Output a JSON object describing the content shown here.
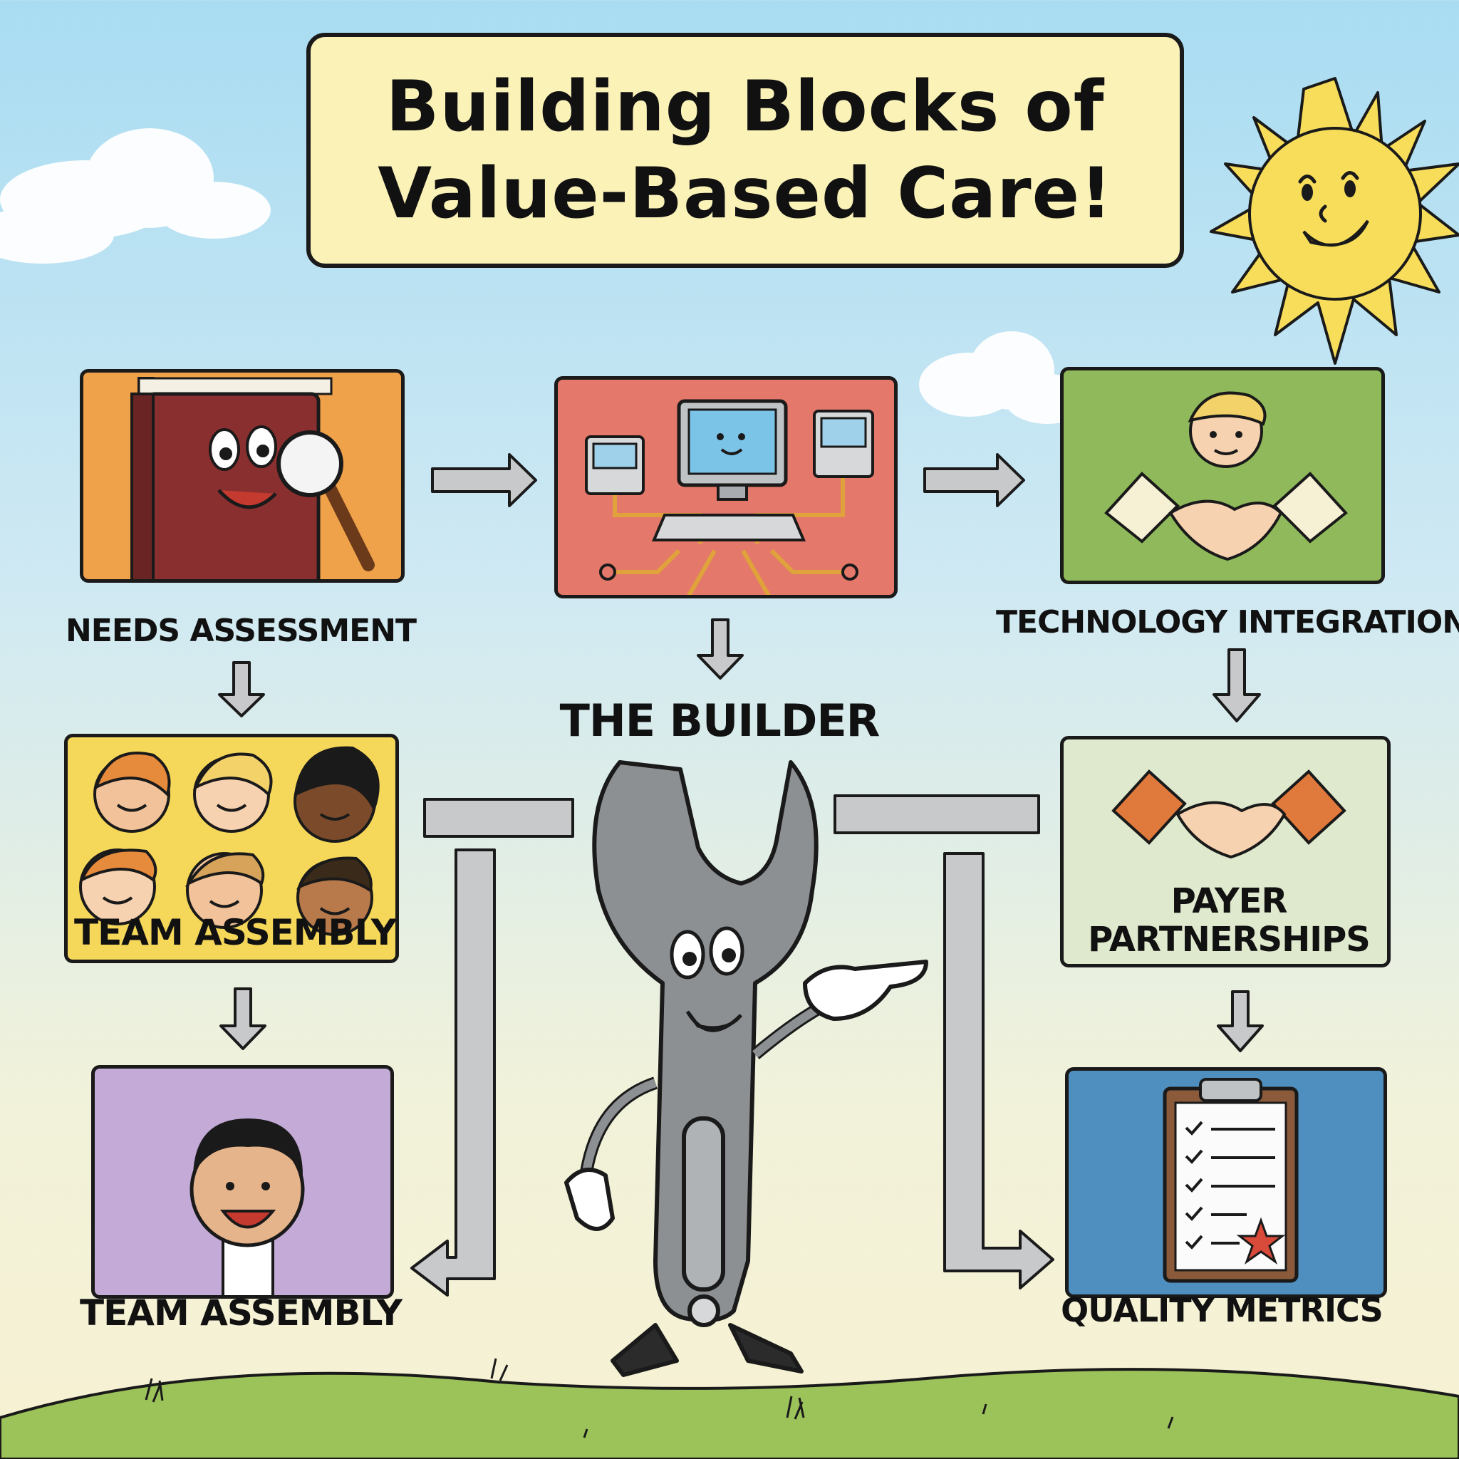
{
  "title": {
    "line1": "Building Blocks of",
    "line2": "Value-Based Care!"
  },
  "center": {
    "label": "The Builder"
  },
  "blocks": [
    {
      "label": "Needs Assessment",
      "color": "#f0a24a"
    },
    {
      "label": "Technology Integration",
      "color": "#e4786a"
    },
    {
      "label": "Team Assembly",
      "color": "#f5d75a"
    },
    {
      "label": "Payer Partnerships",
      "color": "#dfe9cd"
    },
    {
      "label": "Team Assembly",
      "color": "#c4aad6"
    },
    {
      "label": "Quality Metrics",
      "color": "#4f8fbf"
    }
  ],
  "colors": {
    "sky_top": "#a9dcf2",
    "grass": "#9cc25a",
    "sun": "#f7dd5a",
    "green_panel": "#8fb95a",
    "arrow": "#c7c9cb"
  }
}
